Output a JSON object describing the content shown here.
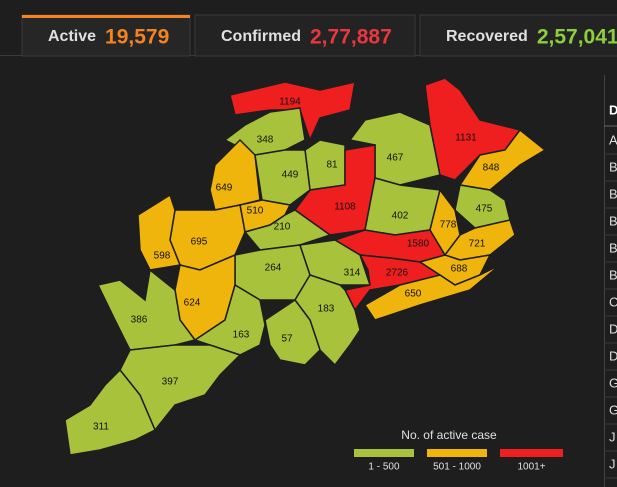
{
  "tabs": [
    {
      "label": "Active",
      "value": "19,579",
      "color": "#f5831f"
    },
    {
      "label": "Confirmed",
      "value": "2,77,887",
      "color": "#e8373f"
    },
    {
      "label": "Recovered",
      "value": "2,57,041",
      "color": "#8ccf3e"
    }
  ],
  "map": {
    "districts": [
      {
        "value": 1194,
        "color": "#f01f1f"
      },
      {
        "value": 348,
        "color": "#a8c33b"
      },
      {
        "value": 81,
        "color": "#a8c33b"
      },
      {
        "value": 467,
        "color": "#a8c33b"
      },
      {
        "value": 1131,
        "color": "#f01f1f"
      },
      {
        "value": 848,
        "color": "#f0b50d"
      },
      {
        "value": 649,
        "color": "#f0b50d"
      },
      {
        "value": 449,
        "color": "#a8c33b"
      },
      {
        "value": 510,
        "color": "#f0b50d"
      },
      {
        "value": 1108,
        "color": "#f01f1f"
      },
      {
        "value": 402,
        "color": "#a8c33b"
      },
      {
        "value": 475,
        "color": "#a8c33b"
      },
      {
        "value": 695,
        "color": "#f0b50d"
      },
      {
        "value": 210,
        "color": "#a8c33b"
      },
      {
        "value": 1580,
        "color": "#f01f1f"
      },
      {
        "value": 778,
        "color": "#f0b50d"
      },
      {
        "value": 721,
        "color": "#f0b50d"
      },
      {
        "value": 598,
        "color": "#f0b50d"
      },
      {
        "value": 264,
        "color": "#a8c33b"
      },
      {
        "value": 314,
        "color": "#a8c33b"
      },
      {
        "value": 2726,
        "color": "#f01f1f"
      },
      {
        "value": 688,
        "color": "#f0b50d"
      },
      {
        "value": 650,
        "color": "#f0b50d"
      },
      {
        "value": 624,
        "color": "#f0b50d"
      },
      {
        "value": 386,
        "color": "#a8c33b"
      },
      {
        "value": 183,
        "color": "#a8c33b"
      },
      {
        "value": 163,
        "color": "#a8c33b"
      },
      {
        "value": 57,
        "color": "#a8c33b"
      },
      {
        "value": 397,
        "color": "#a8c33b"
      },
      {
        "value": 311,
        "color": "#a8c33b"
      }
    ],
    "legend": {
      "title": "No. of active case",
      "items": [
        {
          "label": "1 - 500",
          "color": "#a8c33b"
        },
        {
          "label": "501 - 1000",
          "color": "#f0b50d"
        },
        {
          "label": "1001+",
          "color": "#f01f1f"
        }
      ]
    }
  },
  "table": {
    "header": "D",
    "rows": [
      "A",
      "B",
      "B",
      "B",
      "B",
      "B",
      "C",
      "D",
      "D",
      "G",
      "G",
      "J",
      "J"
    ]
  }
}
